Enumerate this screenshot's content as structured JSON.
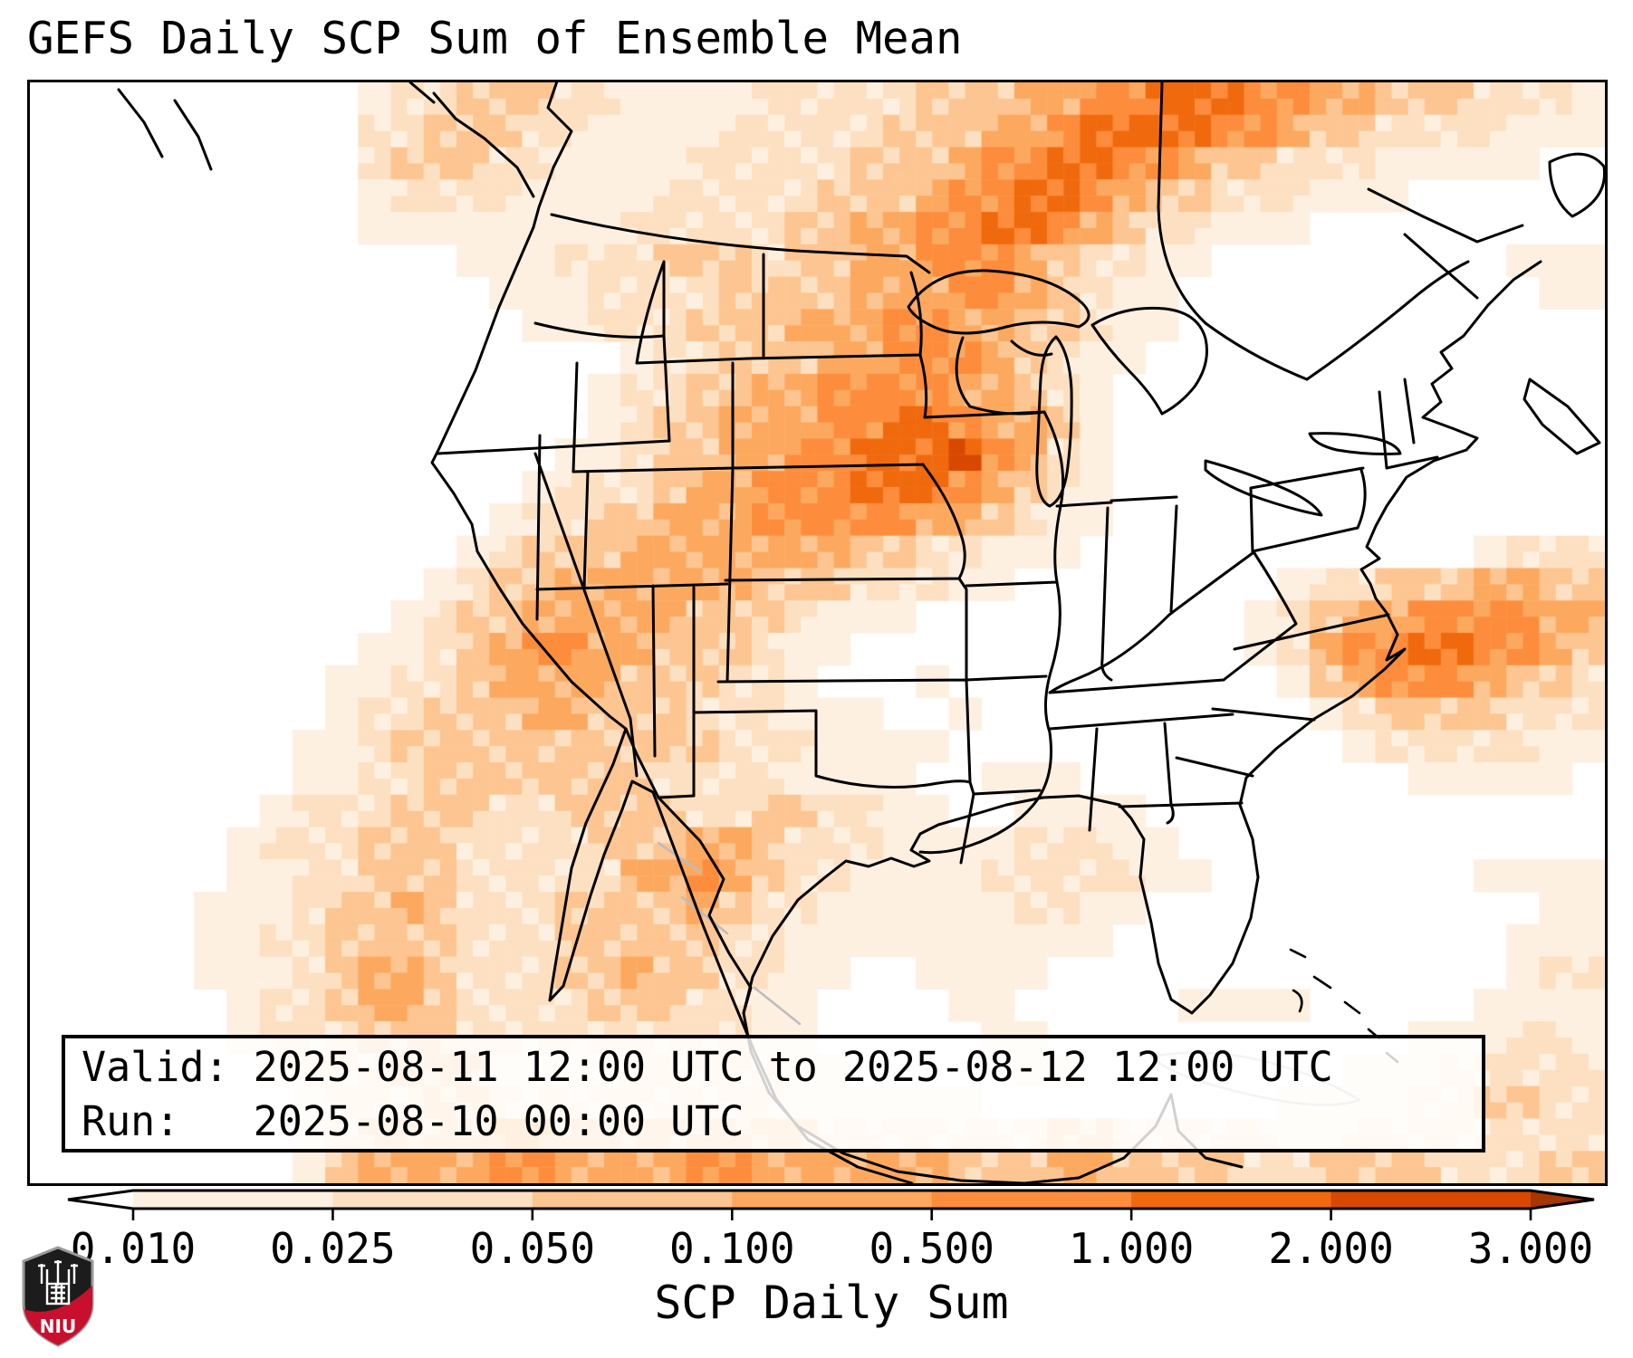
{
  "title": "GEFS Daily SCP Sum of Ensemble Mean",
  "info_box": {
    "line1": "Valid: 2025-08-11 12:00 UTC to 2025-08-12 12:00 UTC",
    "line2": "Run:   2025-08-10 00:00 UTC",
    "valid_label": "Valid:",
    "valid_value": "2025-08-11 12:00 UTC to 2025-08-12 12:00 UTC",
    "run_label": "Run:",
    "run_value": "2025-08-10 00:00 UTC"
  },
  "colorbar": {
    "label": "SCP Daily Sum",
    "tick_labels": [
      "0.010",
      "0.025",
      "0.050",
      "0.100",
      "0.500",
      "1.000",
      "2.000",
      "3.000"
    ],
    "boundaries": [
      0.01,
      0.025,
      0.05,
      0.1,
      0.5,
      1.0,
      2.0,
      3.0
    ],
    "segment_colors": [
      "#fef0e0",
      "#fde0c1",
      "#fdc591",
      "#fca95f",
      "#fd8d3c",
      "#f1690d",
      "#d94801"
    ],
    "under_color": "#ffffff",
    "over_color": "#a63603",
    "outline_color": "#000000"
  },
  "logo": {
    "text": "NIU",
    "shield_black": "#1c1c1c",
    "shield_red": "#c8102e",
    "castle_color": "#ffffff",
    "border_color": "#9a9a9a"
  },
  "map": {
    "background": "#ffffff",
    "us_outline_color": "#000000",
    "foreign_outline_color": "#bdbdbd",
    "heat_palette": [
      "#ffffff",
      "#fef0e0",
      "#fde0c1",
      "#fdc591",
      "#fca95f",
      "#fd8d3c",
      "#f1690d",
      "#d94801"
    ],
    "heat_grid": [
      "000000000012233322111122222333445566655443332221",
      "000000000022333221111222223334456666554332222111",
      "000000000023332211112222233345566554332221111100",
      "000000000012222111122222333455665433222111000000",
      "000000000011111111222223344556654322111000000000",
      "000000000000011122233323344555432211000000000111",
      "000000000000001112222333344455432110000000000011",
      "000000000000000112223334445544332110000000000000",
      "000000000000000000122333445554321100000000000000",
      "000000000000000001223344555544321000000000000000",
      "000000000000000001233444556654431000000000000000",
      "000000000000000011233445566675421000000000000000",
      "000000000000000122234455566654321000000000000000",
      "000000000000001223344455555443211000000000000000",
      "000000000000012333444444433221110000000000001222",
      "000000000000123344444433322211000000001223334433",
      "000000000001233444443332111000000000012344555544",
      "000000000011234554433321100000000000012455665543",
      "000000000112234444333221000100000000001345554332",
      "000000000122333443332221110010000000000123333222",
      "000000001123333333333222111100000000000012222211",
      "000000001122333333322221111001110000000000111110",
      "000000012223332233332233221100111100000000000000",
      "000000122233322223334432221111222110000000000000",
      "000000112233322222445432211112222211000000001111",
      "000001112334322233334322111111221100000000000011",
      "000001122333322233333221111111111000000000000111",
      "000001112344322233433221100111100000000000000122",
      "000000122344322223332211000011000001111000001111",
      "000000122233322222222211000001100000000000111221",
      "000000012223331111222221100000110000000011122222",
      "000000001222332222222221111110000000001111223322",
      "000000001233334433333333222222233222221122222222",
      "000000001344445544445544444433344333322333322233"
    ]
  },
  "chart_data": {
    "type": "heatmap",
    "title": "GEFS Daily SCP Sum of Ensemble Mean",
    "colorbar_label": "SCP Daily Sum",
    "colorbar_boundaries": [
      0.01,
      0.025,
      0.05,
      0.1,
      0.5,
      1.0,
      2.0,
      3.0
    ],
    "colorbar_extend": "both",
    "region": "CONUS with southern Canada, Mexico, western Atlantic and Gulf of Mexico",
    "notes": "Shaded SCP daily-sum ensemble mean; strongest maxima over eastern Iowa / Wisconsin, southern Ontario-Quebec, NE New Mexico-Kansas corridor, offshore Atlantic east of the Carolinas, and the Texas Gulf coast"
  }
}
